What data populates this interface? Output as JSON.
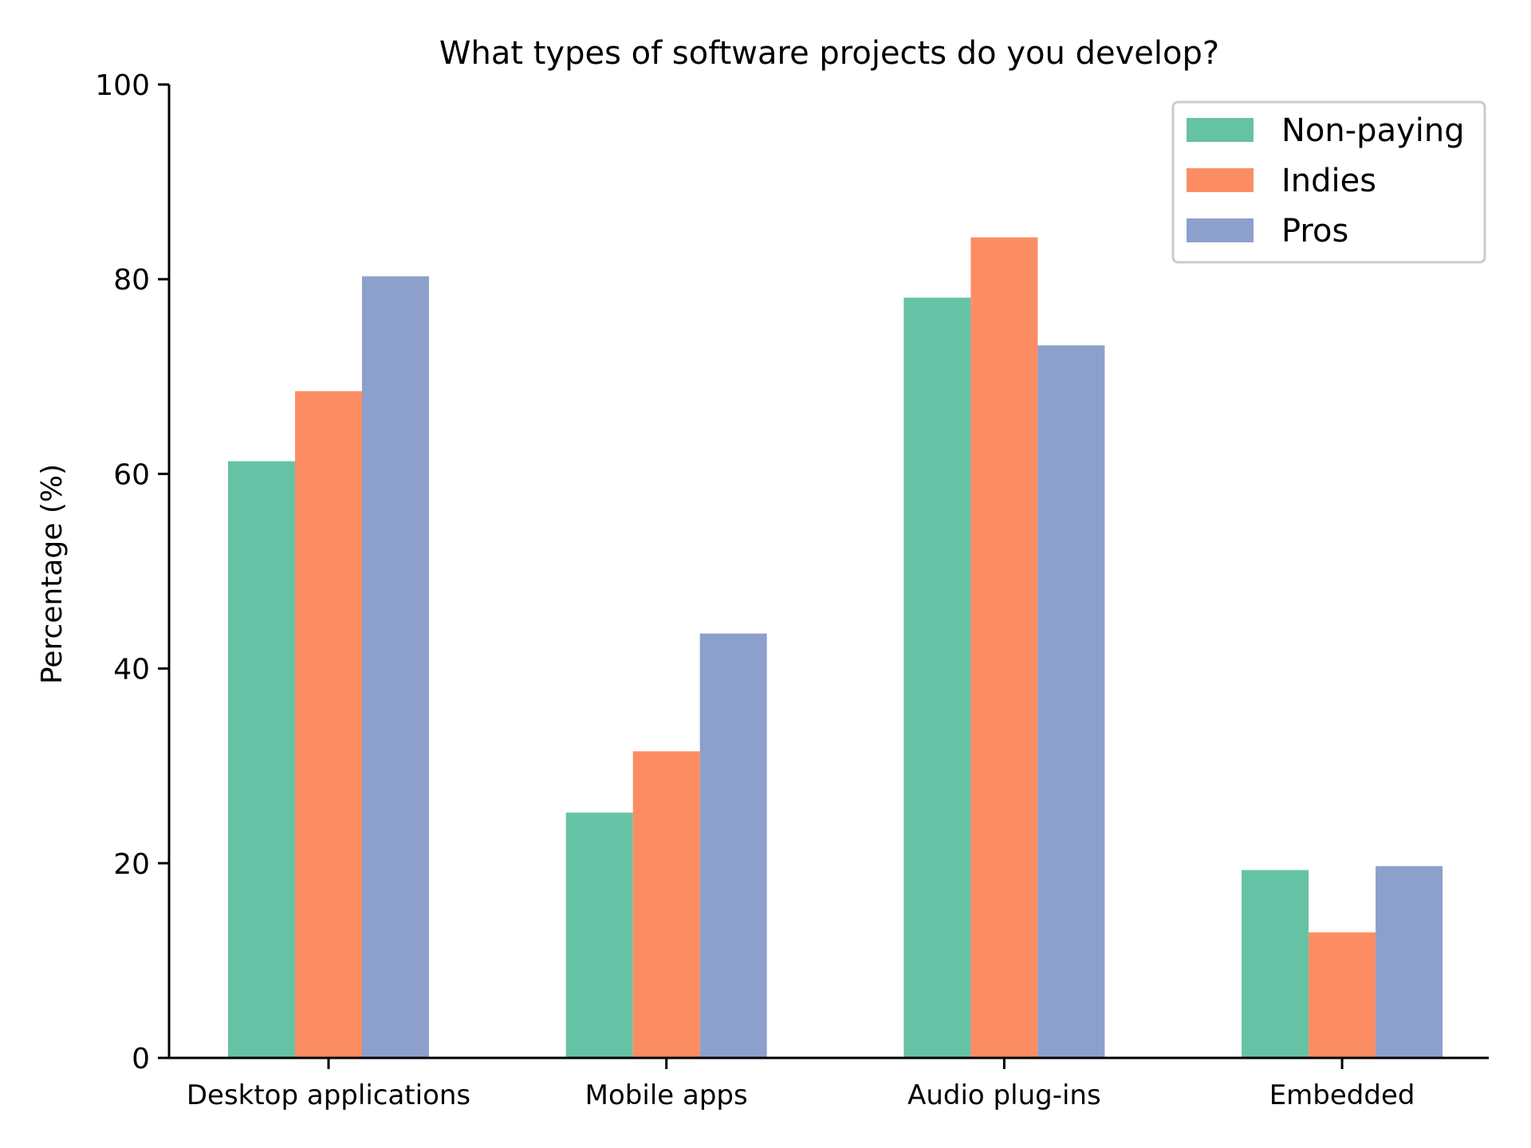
{
  "chart_data": {
    "type": "bar",
    "title": "What types of software projects do you develop?",
    "xlabel": "",
    "ylabel": "Percentage (%)",
    "ylim": [
      0,
      100
    ],
    "yticks": [
      0,
      20,
      40,
      60,
      80,
      100
    ],
    "grid": false,
    "legend_position": "top-right",
    "categories": [
      "Desktop applications",
      "Mobile apps",
      "Audio plug-ins",
      "Embedded"
    ],
    "series": [
      {
        "name": "Non-paying",
        "color": "#66c2a5",
        "values": [
          61.3,
          25.2,
          78.1,
          19.3
        ]
      },
      {
        "name": "Indies",
        "color": "#fc8d62",
        "values": [
          68.5,
          31.5,
          84.3,
          12.9
        ]
      },
      {
        "name": "Pros",
        "color": "#8da0cb",
        "values": [
          80.3,
          43.6,
          73.2,
          19.7
        ]
      }
    ]
  }
}
